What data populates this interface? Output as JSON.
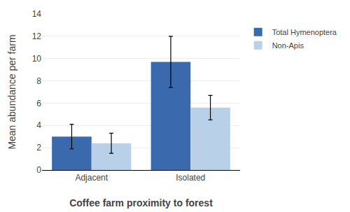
{
  "chart_data": {
    "type": "bar",
    "categories": [
      "Adjacent",
      "Isolated"
    ],
    "series": [
      {
        "name": "Total Hymenoptera",
        "color": "#3A6AAD",
        "values": [
          3.0,
          9.7
        ],
        "errors": [
          1.1,
          2.3
        ]
      },
      {
        "name": "Non-Apis",
        "color": "#B8D0E8",
        "values": [
          2.4,
          5.6
        ],
        "errors": [
          0.9,
          1.1
        ]
      }
    ],
    "xlabel": "Coffee farm proximity to forest",
    "ylabel": "Mean abundance per farm",
    "ylim": [
      0,
      14
    ],
    "yticks": [
      0,
      2,
      4,
      6,
      8,
      10,
      12,
      14
    ],
    "grid": true,
    "legend": "right"
  }
}
